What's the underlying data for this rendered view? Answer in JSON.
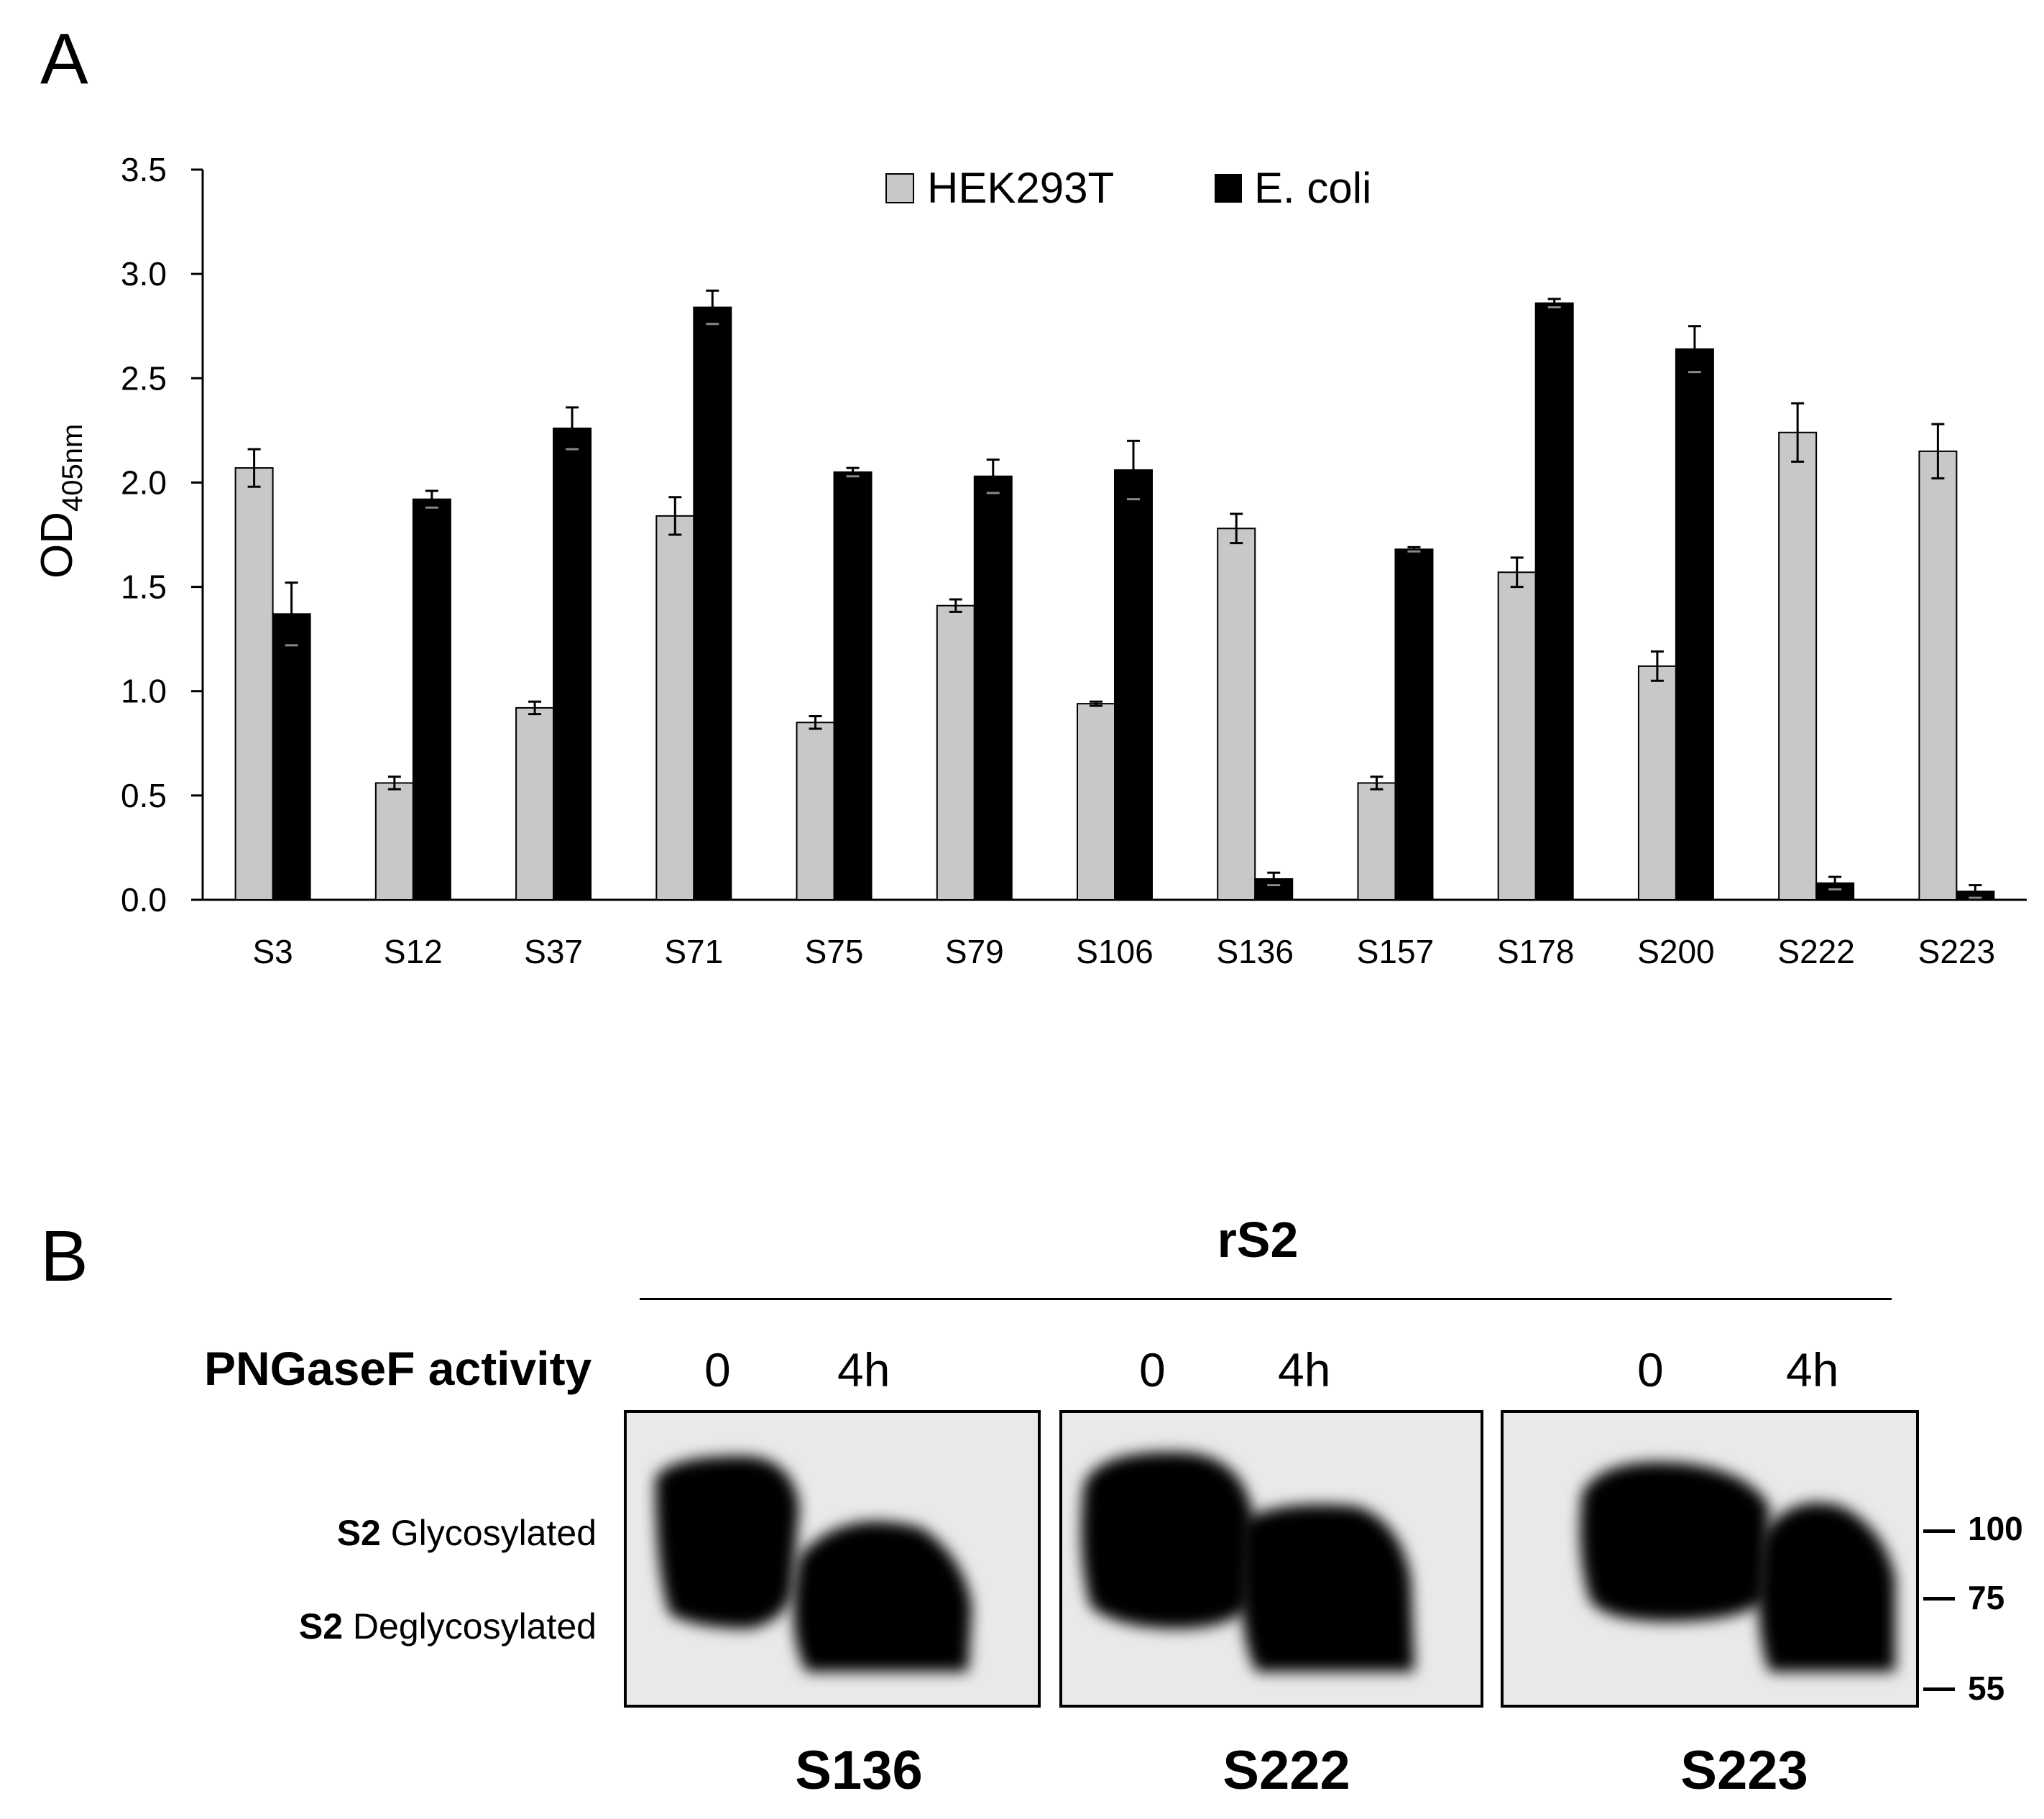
{
  "panels": {
    "a_label": "A",
    "b_label": "B"
  },
  "chart_data": {
    "type": "bar",
    "categories": [
      "S3",
      "S12",
      "S37",
      "S71",
      "S75",
      "S79",
      "S106",
      "S136",
      "S157",
      "S178",
      "S200",
      "S222",
      "S223"
    ],
    "series": [
      {
        "name": "HEK293T",
        "color": "#c8c8c8",
        "values": [
          2.07,
          0.56,
          0.92,
          1.84,
          0.85,
          1.41,
          0.94,
          1.78,
          0.56,
          1.57,
          1.12,
          2.24,
          2.15
        ],
        "errors": [
          0.09,
          0.03,
          0.03,
          0.09,
          0.03,
          0.03,
          0.01,
          0.07,
          0.03,
          0.07,
          0.07,
          0.14,
          0.13
        ]
      },
      {
        "name": "E. coli",
        "color": "#000000",
        "values": [
          1.37,
          1.92,
          2.26,
          2.84,
          2.05,
          2.03,
          2.06,
          0.1,
          1.68,
          2.86,
          2.64,
          0.08,
          0.04
        ],
        "errors": [
          0.15,
          0.04,
          0.1,
          0.08,
          0.02,
          0.08,
          0.14,
          0.03,
          0.01,
          0.02,
          0.11,
          0.03,
          0.03
        ]
      }
    ],
    "ylabel_main": "OD",
    "ylabel_sub": "405nm",
    "ylim": [
      0,
      3.5
    ],
    "yticks": [
      "0.0",
      "0.5",
      "1.0",
      "1.5",
      "2.0",
      "2.5",
      "3.0",
      "3.5"
    ],
    "legend_position": "top-center",
    "grid": false
  },
  "blot": {
    "title": "rS2",
    "activity_label": "PNGaseF activity",
    "time_labels": [
      "0",
      "4h",
      "0",
      "4h",
      "0",
      "4h"
    ],
    "bands": {
      "glyco_bold": "S2",
      "glyco_text": " Glycosylated",
      "deglyco_bold": "S2",
      "deglyco_text": " Deglycosylated"
    },
    "markers": [
      "100",
      "75",
      "55"
    ],
    "samples": [
      "S136",
      "S222",
      "S223"
    ]
  }
}
